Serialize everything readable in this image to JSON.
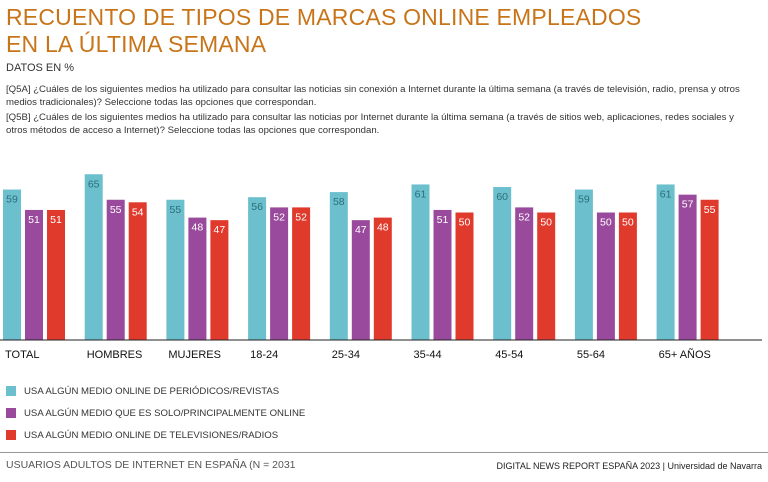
{
  "title_line1": "RECUENTO DE TIPOS DE MARCAS ONLINE EMPLEADOS",
  "title_line2": "EN LA ÚLTIMA SEMANA",
  "subtitle": "DATOS EN %",
  "question_a": "[Q5A] ¿Cuáles de los siguientes medios ha utilizado para consultar las noticias sin conexión a Internet durante la última semana (a través de televisión, radio, prensa y otros medios tradicionales)? Seleccione todas las opciones que correspondan.",
  "question_b": "[Q5B] ¿Cuáles de los siguientes medios ha utilizado para consultar las noticias por Internet durante la última semana (a través de sitios web, aplicaciones, redes sociales y otros métodos de acceso a Internet)? Seleccione todas las opciones que correspondan.",
  "footer_left": "USUARIOS ADULTOS DE INTERNET EN ESPAÑA (N = 2031",
  "footer_right": "DIGITAL NEWS REPORT ESPAÑA 2023 | Universidad de Navarra",
  "chart_data": {
    "type": "bar",
    "categories": [
      "TOTAL",
      "HOMBRES",
      "MUJERES",
      "18-24",
      "25-34",
      "35-44",
      "45-54",
      "55-64",
      "65+ AÑOS"
    ],
    "series": [
      {
        "name": "USA ALGÚN MEDIO ONLINE DE PERIÓDICOS/REVISTAS",
        "color": "#6cbfcc",
        "values": [
          59,
          65,
          55,
          56,
          58,
          61,
          60,
          59,
          61
        ]
      },
      {
        "name": "USA ALGÚN MEDIO QUE ES SOLO/PRINCIPALMENTE ONLINE",
        "color": "#9a4a9c",
        "values": [
          51,
          55,
          48,
          52,
          47,
          51,
          52,
          50,
          57
        ]
      },
      {
        "name": "USA ALGÚN MEDIO ONLINE DE TELEVISIONES/RADIOS",
        "color": "#e03a2d",
        "values": [
          51,
          54,
          47,
          52,
          48,
          50,
          50,
          50,
          55
        ]
      }
    ],
    "ylim": [
      0,
      70
    ],
    "grid": false,
    "legend": "bottom-left"
  }
}
